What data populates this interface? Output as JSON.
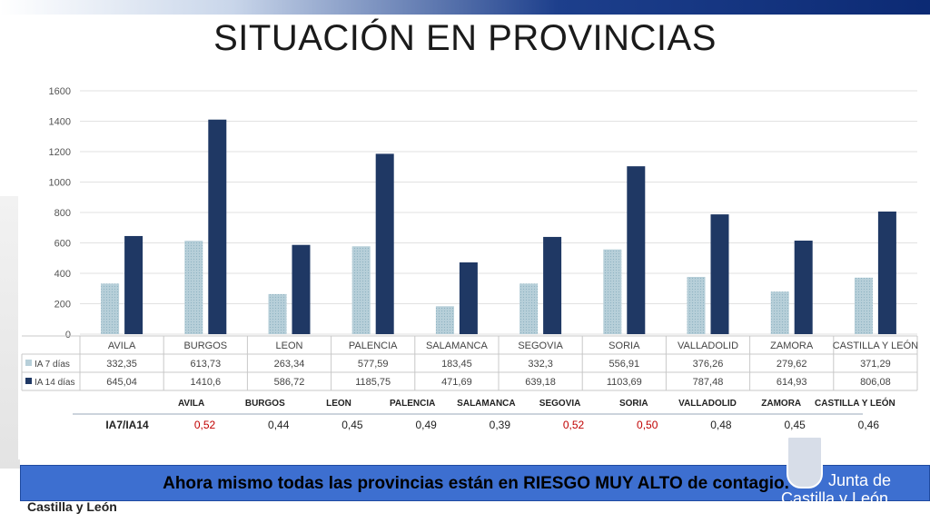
{
  "slide": {
    "title": "SITUACIÓN EN PROVINCIAS",
    "banner": "Ahora mismo todas las provincias están en RIESGO MUY ALTO de contagio.",
    "footer": "Castilla y León",
    "logo_line1": "Junta de",
    "logo_line2": "Castilla y León"
  },
  "colors": {
    "ia7": "#b7cfd9",
    "ia14": "#1f3864",
    "ratio_high": "#c00000",
    "ratio_normal": "#222222",
    "banner": "#3d6fd0"
  },
  "chart_data": {
    "type": "bar",
    "categories": [
      "AVILA",
      "BURGOS",
      "LEON",
      "PALENCIA",
      "SALAMANCA",
      "SEGOVIA",
      "SORIA",
      "VALLADOLID",
      "ZAMORA",
      "CASTILLA Y LEÓN"
    ],
    "series": [
      {
        "name": "IA 7 días",
        "values": [
          332.35,
          613.73,
          263.34,
          577.59,
          183.45,
          332.3,
          556.91,
          376.26,
          279.62,
          371.29
        ],
        "labels": [
          "332,35",
          "613,73",
          "263,34",
          "577,59",
          "183,45",
          "332,3",
          "556,91",
          "376,26",
          "279,62",
          "371,29"
        ]
      },
      {
        "name": "IA 14 días",
        "values": [
          645.04,
          1410.6,
          586.72,
          1185.75,
          471.69,
          639.18,
          1103.69,
          787.48,
          614.93,
          806.08
        ],
        "labels": [
          "645,04",
          "1410,6",
          "586,72",
          "1185,75",
          "471,69",
          "639,18",
          "1103,69",
          "787,48",
          "614,93",
          "806,08"
        ]
      }
    ],
    "ylim": [
      0,
      1600
    ],
    "yticks": [
      0,
      200,
      400,
      600,
      800,
      1000,
      1200,
      1400,
      1600
    ],
    "grid": true,
    "legend": "data-table",
    "ratio_table": {
      "label": "IA7/IA14",
      "headers": [
        "AVILA",
        "BURGOS",
        "LEON",
        "PALENCIA",
        "SALAMANCA",
        "SEGOVIA",
        "SORIA",
        "VALLADOLID",
        "ZAMORA",
        "CASTILLA Y LEÓN"
      ],
      "values": [
        "0,52",
        "0,44",
        "0,45",
        "0,49",
        "0,39",
        "0,52",
        "0,50",
        "0,48",
        "0,45",
        "0,46"
      ],
      "highlighted": [
        true,
        false,
        false,
        false,
        false,
        true,
        true,
        false,
        false,
        false
      ]
    }
  }
}
